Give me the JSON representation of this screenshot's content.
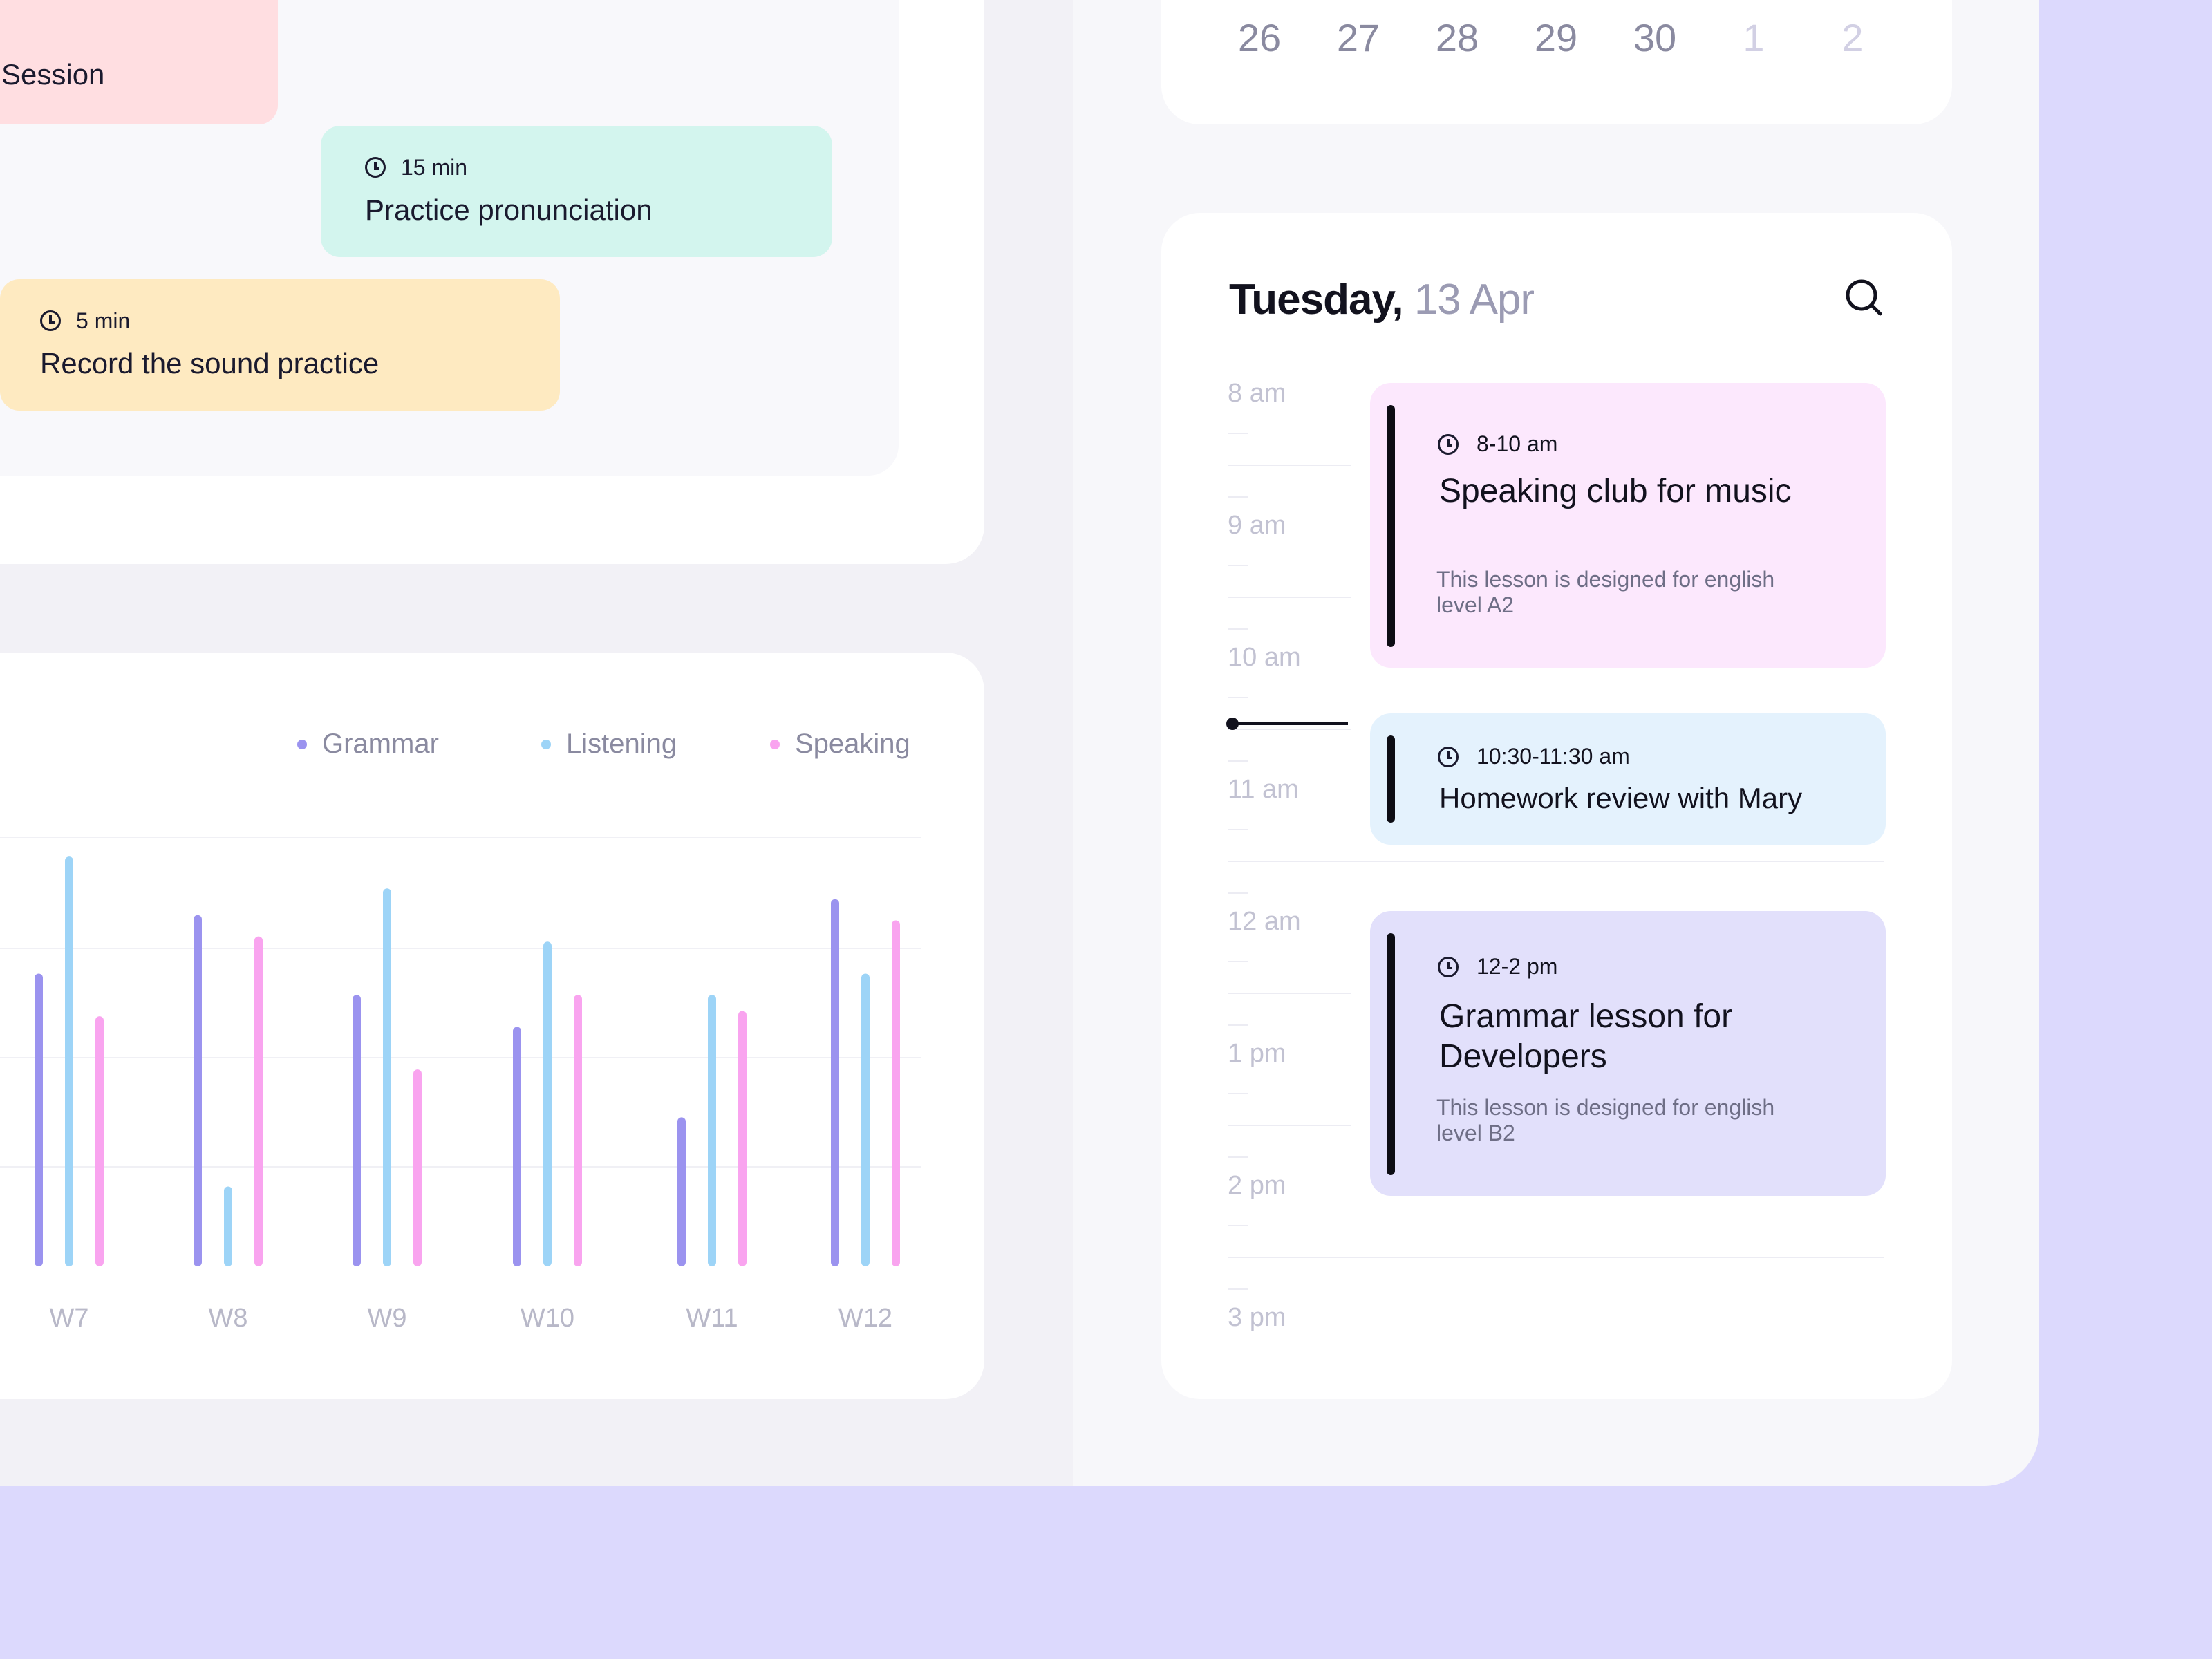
{
  "tasks": [
    {
      "duration": "",
      "title": "Session",
      "color": "#ffdee1"
    },
    {
      "duration": "15 min",
      "title": "Practice pronunciation",
      "color": "#d3f5ee"
    },
    {
      "duration": "5 min",
      "title": "Record the sound practice",
      "color": "#feeac1"
    }
  ],
  "chart_data": {
    "type": "bar",
    "categories": [
      "W7",
      "W8",
      "W9",
      "W10",
      "W11",
      "W12"
    ],
    "series": [
      {
        "name": "Grammar",
        "color": "#9b93ef",
        "values": [
          55,
          66,
          51,
          45,
          28,
          69
        ]
      },
      {
        "name": "Listening",
        "color": "#9dd4f7",
        "values": [
          77,
          15,
          71,
          61,
          51,
          55
        ]
      },
      {
        "name": "Speaking",
        "color": "#f9a4ef",
        "values": [
          47,
          62,
          37,
          51,
          48,
          65
        ]
      }
    ],
    "ylim": [
      0,
      80
    ],
    "grid": true,
    "legend": "top-right"
  },
  "calendar": {
    "days": [
      "26",
      "27",
      "28",
      "29",
      "30",
      "1",
      "2"
    ],
    "muted_from": 5
  },
  "schedule": {
    "weekday": "Tuesday,",
    "date": "13 Apr",
    "hours": [
      "8 am",
      "9 am",
      "10 am",
      "11 am",
      "12 am",
      "1 pm",
      "2 pm",
      "3 pm"
    ],
    "events": [
      {
        "time": "8-10 am",
        "title": "Speaking club for music",
        "description": "This lesson is designed for english level A2",
        "color": "#fce8fd"
      },
      {
        "time": "10:30-11:30 am",
        "title": "Homework review with Mary",
        "description": "",
        "color": "#e4f2fd"
      },
      {
        "time": "12-2 pm",
        "title": "Grammar lesson for Developers",
        "description": "This lesson is designed for english level B2",
        "color": "#e2e0fb"
      }
    ]
  }
}
